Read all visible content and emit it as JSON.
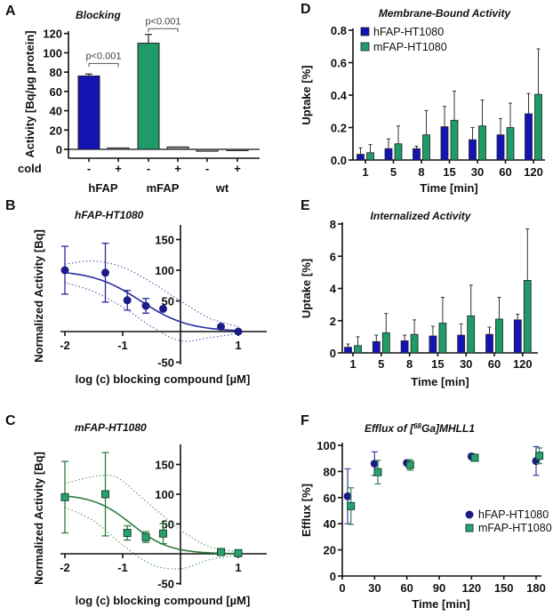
{
  "colors": {
    "hFAP": "#1414b4",
    "mFAP": "#1f9a68",
    "hFAP_marker": "#1b1b86",
    "mFAP_marker": "#2aa070",
    "neg_bar": "#8a9a94"
  },
  "chart_data": [
    {
      "panel": "A",
      "type": "bar",
      "title": "Blocking",
      "ylabel": "Activity [Bq/µg protein]",
      "ylim": [
        -10,
        120
      ],
      "yticks": [
        0,
        20,
        40,
        60,
        80,
        100,
        120
      ],
      "row_label": "cold",
      "categories": [
        "-",
        "+",
        "-",
        "+",
        "-",
        "+"
      ],
      "groups": [
        "hFAP",
        "mFAP",
        "wt"
      ],
      "values": [
        76,
        1.5,
        110,
        2.5,
        -2,
        -1
      ],
      "errors": [
        2,
        0.3,
        9,
        0.4,
        0.5,
        0.3
      ],
      "annotations": [
        {
          "text": "p<0.001",
          "between": [
            0,
            1
          ],
          "level": 89
        },
        {
          "text": "p<0.001",
          "between": [
            2,
            3
          ],
          "level": 125
        }
      ]
    },
    {
      "panel": "B",
      "type": "scatter",
      "title": "hFAP-HT1080",
      "xlabel": "log (c) blocking compound [µM]",
      "ylabel": "Normalized Activity [Bq]",
      "xlim": [
        -2.1,
        1.5
      ],
      "ylim": [
        -50,
        170
      ],
      "xticks": [
        -2,
        -1,
        1
      ],
      "yticks": [
        -50,
        50,
        100,
        150
      ],
      "points": [
        {
          "x": -2,
          "y": 100,
          "err": 39
        },
        {
          "x": -1.3,
          "y": 96,
          "err": 48
        },
        {
          "x": -0.92,
          "y": 51,
          "err": 16
        },
        {
          "x": -0.6,
          "y": 42,
          "err": 12
        },
        {
          "x": -0.3,
          "y": 37,
          "err": 0
        },
        {
          "x": 0.7,
          "y": 8,
          "err": 0
        },
        {
          "x": 1,
          "y": 0,
          "err": 0
        }
      ],
      "fit": {
        "type": "sigmoid",
        "top": 100,
        "bottom": 0,
        "logIC50": -0.69,
        "hill": 1.05
      },
      "ci_upper": [
        [
          -2,
          110
        ],
        [
          -1.5,
          115
        ],
        [
          -1,
          105
        ],
        [
          -0.5,
          80
        ],
        [
          0,
          50
        ],
        [
          0.5,
          22
        ],
        [
          1,
          8
        ]
      ],
      "ci_lower": [
        [
          -2,
          80
        ],
        [
          -1.5,
          65
        ],
        [
          -1,
          40
        ],
        [
          -0.5,
          8
        ],
        [
          0,
          -15
        ],
        [
          0.5,
          -10
        ],
        [
          1,
          -3
        ]
      ]
    },
    {
      "panel": "C",
      "type": "scatter",
      "title": "mFAP-HT1080",
      "xlabel": "log (c) blocking compound [µM]",
      "ylabel": "Normalized Activity [Bq]",
      "xlim": [
        -2.1,
        1.5
      ],
      "ylim": [
        -50,
        175
      ],
      "xticks": [
        -2,
        -1,
        1
      ],
      "yticks": [
        -50,
        50,
        100,
        150
      ],
      "points": [
        {
          "x": -2,
          "y": 95,
          "err": 60
        },
        {
          "x": -1.3,
          "y": 100,
          "err": 70
        },
        {
          "x": -0.92,
          "y": 35,
          "err": 12
        },
        {
          "x": -0.6,
          "y": 28,
          "err": 9
        },
        {
          "x": -0.3,
          "y": 34,
          "err": 17
        },
        {
          "x": 0.7,
          "y": 3,
          "err": 0
        },
        {
          "x": 1,
          "y": 1,
          "err": 0
        }
      ],
      "fit": {
        "type": "sigmoid",
        "top": 100,
        "bottom": 0,
        "logIC50": -0.85,
        "hill": 1.32
      },
      "ci_upper": [
        [
          -2,
          118
        ],
        [
          -1.5,
          130
        ],
        [
          -1.2,
          131
        ],
        [
          -1,
          122
        ],
        [
          -0.5,
          80
        ],
        [
          0,
          40
        ],
        [
          0.5,
          12
        ],
        [
          1,
          3
        ]
      ],
      "ci_lower": [
        [
          -2,
          78
        ],
        [
          -1.5,
          55
        ],
        [
          -1,
          15
        ],
        [
          -0.5,
          -18
        ],
        [
          0,
          -25
        ],
        [
          0.5,
          -10
        ],
        [
          1,
          -2
        ]
      ]
    },
    {
      "panel": "D",
      "type": "bar",
      "title": "Membrane-Bound Activity",
      "xlabel": "Time [min]",
      "ylabel": "Uptake [%]",
      "ylim": [
        0,
        0.8
      ],
      "yticks": [
        0,
        0.2,
        0.4,
        0.6,
        0.8
      ],
      "ytick_labels": [
        "0.0",
        "0.2",
        "0.4",
        "0.6",
        "0.8"
      ],
      "categories": [
        "1",
        "5",
        "8",
        "15",
        "30",
        "60",
        "120"
      ],
      "legend": "top-left",
      "series": [
        {
          "name": "hFAP-HT1080",
          "values": [
            0.035,
            0.07,
            0.07,
            0.205,
            0.125,
            0.155,
            0.285
          ],
          "errors": [
            0.04,
            0.06,
            0.015,
            0.125,
            0.075,
            0.1,
            0.125
          ]
        },
        {
          "name": "mFAP-HT1080",
          "values": [
            0.045,
            0.1,
            0.155,
            0.245,
            0.21,
            0.2,
            0.405
          ],
          "errors": [
            0.05,
            0.11,
            0.15,
            0.18,
            0.16,
            0.15,
            0.28
          ]
        }
      ]
    },
    {
      "panel": "E",
      "type": "bar",
      "title": "Internalized Activity",
      "xlabel": "Time [min]",
      "ylabel": "Uptake [%]",
      "ylim": [
        0,
        8
      ],
      "yticks": [
        0,
        2,
        4,
        6,
        8
      ],
      "ytick_labels": [
        "0",
        "2",
        "4",
        "6",
        "8"
      ],
      "categories": [
        "1",
        "5",
        "8",
        "15",
        "30",
        "60",
        "120"
      ],
      "series": [
        {
          "values": [
            0.35,
            0.7,
            0.75,
            1.05,
            1.1,
            1.15,
            2.05
          ],
          "errors": [
            0.2,
            0.4,
            0.35,
            0.6,
            0.7,
            0.45,
            0.35
          ]
        },
        {
          "values": [
            0.45,
            1.25,
            1.15,
            1.85,
            2.3,
            2.1,
            4.5
          ],
          "errors": [
            0.55,
            1.2,
            0.9,
            1.6,
            1.9,
            1.35,
            3.2
          ]
        }
      ]
    },
    {
      "panel": "F",
      "type": "scatter",
      "title_prefix": "Efflux of [",
      "title_sup": "68",
      "title_suffix": "Ga]MHLL1",
      "xlabel": "Time [min]",
      "ylabel": "Efflux [%]",
      "xlim": [
        0,
        185
      ],
      "ylim": [
        0,
        100
      ],
      "xticks": [
        0,
        30,
        60,
        90,
        120,
        150,
        180
      ],
      "yticks": [
        0,
        20,
        40,
        60,
        80,
        100
      ],
      "legend": "right",
      "series": [
        {
          "name": "hFAP-HT1080",
          "marker": "circle",
          "points": [
            {
              "x": 5,
              "y": 61,
              "err": 21
            },
            {
              "x": 30,
              "y": 86,
              "err": 9
            },
            {
              "x": 60,
              "y": 86.5,
              "err": 1
            },
            {
              "x": 120,
              "y": 91.5,
              "err": 2
            },
            {
              "x": 180,
              "y": 88,
              "err": 11
            }
          ]
        },
        {
          "name": "mFAP-HT1080",
          "marker": "square",
          "points": [
            {
              "x": 8,
              "y": 53.5,
              "err": 14
            },
            {
              "x": 33,
              "y": 79.5,
              "err": 9
            },
            {
              "x": 63,
              "y": 85,
              "err": 4
            },
            {
              "x": 123,
              "y": 90.5,
              "err": 1
            },
            {
              "x": 183,
              "y": 92,
              "err": 6
            }
          ]
        }
      ]
    }
  ],
  "panel_letters": [
    "A",
    "B",
    "C",
    "D",
    "E",
    "F"
  ]
}
